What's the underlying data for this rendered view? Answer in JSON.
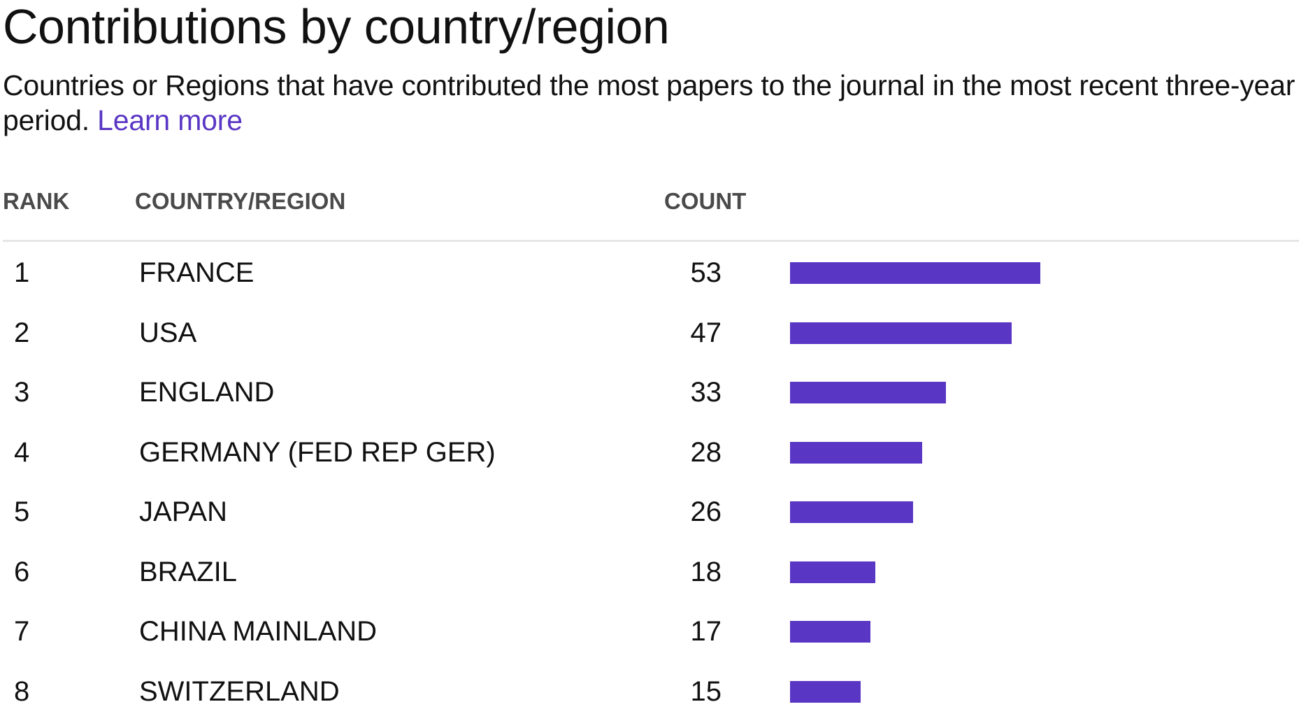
{
  "header": {
    "title": "Contributions by country/region",
    "description": "Countries or Regions that have contributed the most papers to the journal in the most recent three-year period.",
    "learn_more": "Learn more"
  },
  "table": {
    "columns": {
      "rank": "RANK",
      "country": "COUNTRY/REGION",
      "count": "COUNT"
    },
    "bar_color": "#5936c4",
    "max_count": 53,
    "rows": [
      {
        "rank": "1",
        "country": "FRANCE",
        "count": 53
      },
      {
        "rank": "2",
        "country": "USA",
        "count": 47
      },
      {
        "rank": "3",
        "country": "ENGLAND",
        "count": 33
      },
      {
        "rank": "4",
        "country": "GERMANY (FED REP GER)",
        "count": 28
      },
      {
        "rank": "5",
        "country": "JAPAN",
        "count": 26
      },
      {
        "rank": "6",
        "country": "BRAZIL",
        "count": 18
      },
      {
        "rank": "7",
        "country": "CHINA MAINLAND",
        "count": 17
      },
      {
        "rank": "8",
        "country": "SWITZERLAND",
        "count": 15
      }
    ]
  }
}
